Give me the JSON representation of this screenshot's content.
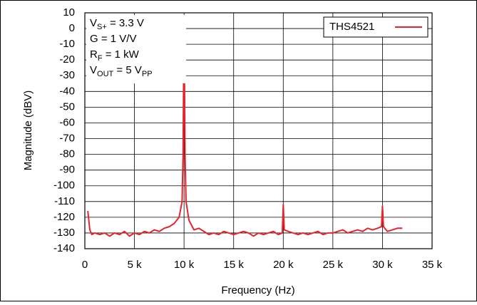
{
  "chart_data": {
    "type": "line",
    "xlabel": "Frequency (Hz)",
    "ylabel": "Magnitude (dBV)",
    "annotations": [
      [
        {
          "text": "V"
        },
        {
          "sub": "S+"
        },
        {
          "text": " = 3.3 V"
        }
      ],
      [
        {
          "text": "G = 1 V/V"
        }
      ],
      [
        {
          "text": "R"
        },
        {
          "sub": "F"
        },
        {
          "text": " = 1 kW"
        }
      ],
      [
        {
          "text": "V"
        },
        {
          "sub": "OUT"
        },
        {
          "text": " = 5 V"
        },
        {
          "sub": "PP"
        }
      ]
    ],
    "legend": "upper right",
    "grid": true,
    "xlim": [
      0,
      35000
    ],
    "xticks": [
      0,
      {
        "value": 5000,
        "label": "5 k"
      },
      {
        "value": 10000,
        "label": "10 k"
      },
      {
        "value": 15000,
        "label": "15 k"
      },
      {
        "value": 20000,
        "label": "20 k"
      },
      {
        "value": 25000,
        "label": "25 k"
      },
      {
        "value": 30000,
        "label": "30 k"
      },
      {
        "value": 35000,
        "label": "35 k"
      }
    ],
    "ylim": [
      -140,
      10
    ],
    "yticks": [
      -140,
      -130,
      -120,
      -110,
      -100,
      -90,
      -80,
      -70,
      -60,
      -50,
      -40,
      -30,
      -20,
      -10,
      0,
      10
    ],
    "x": [
      300,
      500,
      700,
      1000,
      1500,
      2000,
      2500,
      3000,
      3500,
      4000,
      4500,
      5000,
      5500,
      6000,
      6500,
      7000,
      7500,
      8000,
      8500,
      9000,
      9500,
      9800,
      9900,
      10000,
      10100,
      10200,
      10500,
      11000,
      11500,
      12000,
      12500,
      13000,
      13500,
      14000,
      14500,
      15000,
      15500,
      16000,
      16500,
      17000,
      17500,
      18000,
      18500,
      19000,
      19500,
      19900,
      20000,
      20100,
      20500,
      21000,
      21500,
      22000,
      22500,
      23000,
      23500,
      24000,
      24500,
      25000,
      25500,
      26000,
      26500,
      27000,
      27500,
      28000,
      28500,
      29000,
      29500,
      29900,
      30000,
      30100,
      30500,
      31000,
      31500,
      32000
    ],
    "series": [
      {
        "name": "THS4521",
        "color": "#e4252b",
        "values": [
          -116,
          -128,
          -131,
          -130,
          -131,
          -130,
          -132,
          -130,
          -131,
          -129,
          -132,
          -130,
          -131,
          -129,
          -130,
          -128,
          -129,
          -127,
          -126,
          -124,
          -120,
          -110,
          -80,
          5,
          -80,
          -110,
          -122,
          -128,
          -127,
          -129,
          -131,
          -130,
          -131,
          -129,
          -130,
          -131,
          -130,
          -129,
          -130,
          -132,
          -130,
          -131,
          -130,
          -129,
          -131,
          -130,
          -112,
          -128,
          -129,
          -130,
          -131,
          -130,
          -131,
          -130,
          -129,
          -131,
          -130,
          -130,
          -129,
          -128,
          -130,
          -129,
          -128,
          -129,
          -127,
          -128,
          -127,
          -126,
          -113,
          -126,
          -129,
          -128,
          -127,
          -127
        ]
      }
    ]
  }
}
